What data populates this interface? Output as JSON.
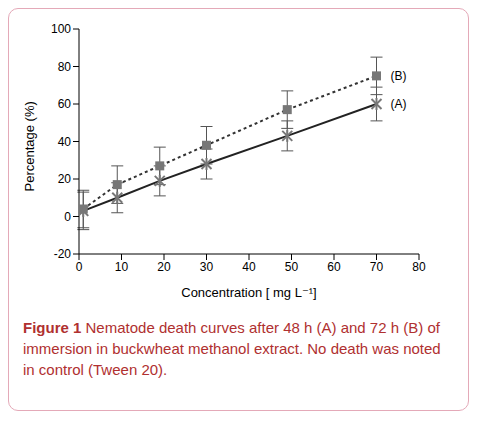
{
  "chart_data": {
    "type": "line",
    "x_label": "Concentration [ mg L⁻¹]",
    "y_label": "Percentage (%)",
    "x": [
      1,
      9,
      19,
      30,
      49,
      70
    ],
    "series": [
      {
        "name": "(A)",
        "color": "#222222",
        "marker": "star",
        "line_style": "solid",
        "values": [
          3,
          10,
          19,
          28,
          43,
          60
        ],
        "errors": [
          10,
          8,
          8,
          8,
          8,
          9
        ]
      },
      {
        "name": "(B)",
        "color": "#333333",
        "marker": "square",
        "line_style": "dashed",
        "values": [
          4,
          17,
          27,
          38,
          57,
          75
        ],
        "errors": [
          10,
          10,
          10,
          10,
          10,
          10
        ]
      }
    ],
    "xlim": [
      0,
      80
    ],
    "xticks": [
      0,
      10,
      20,
      30,
      40,
      50,
      60,
      70,
      80
    ],
    "ylim": [
      -20,
      100
    ],
    "yticks": [
      -20,
      0,
      20,
      40,
      60,
      80,
      100
    ],
    "grid": false,
    "caption_label": "Figure 1",
    "caption": "Nematode death curves after 48 h (A) and 72 h (B) of immersion in buckwheat methanol extract. No death was noted in control (Tween 20)."
  }
}
